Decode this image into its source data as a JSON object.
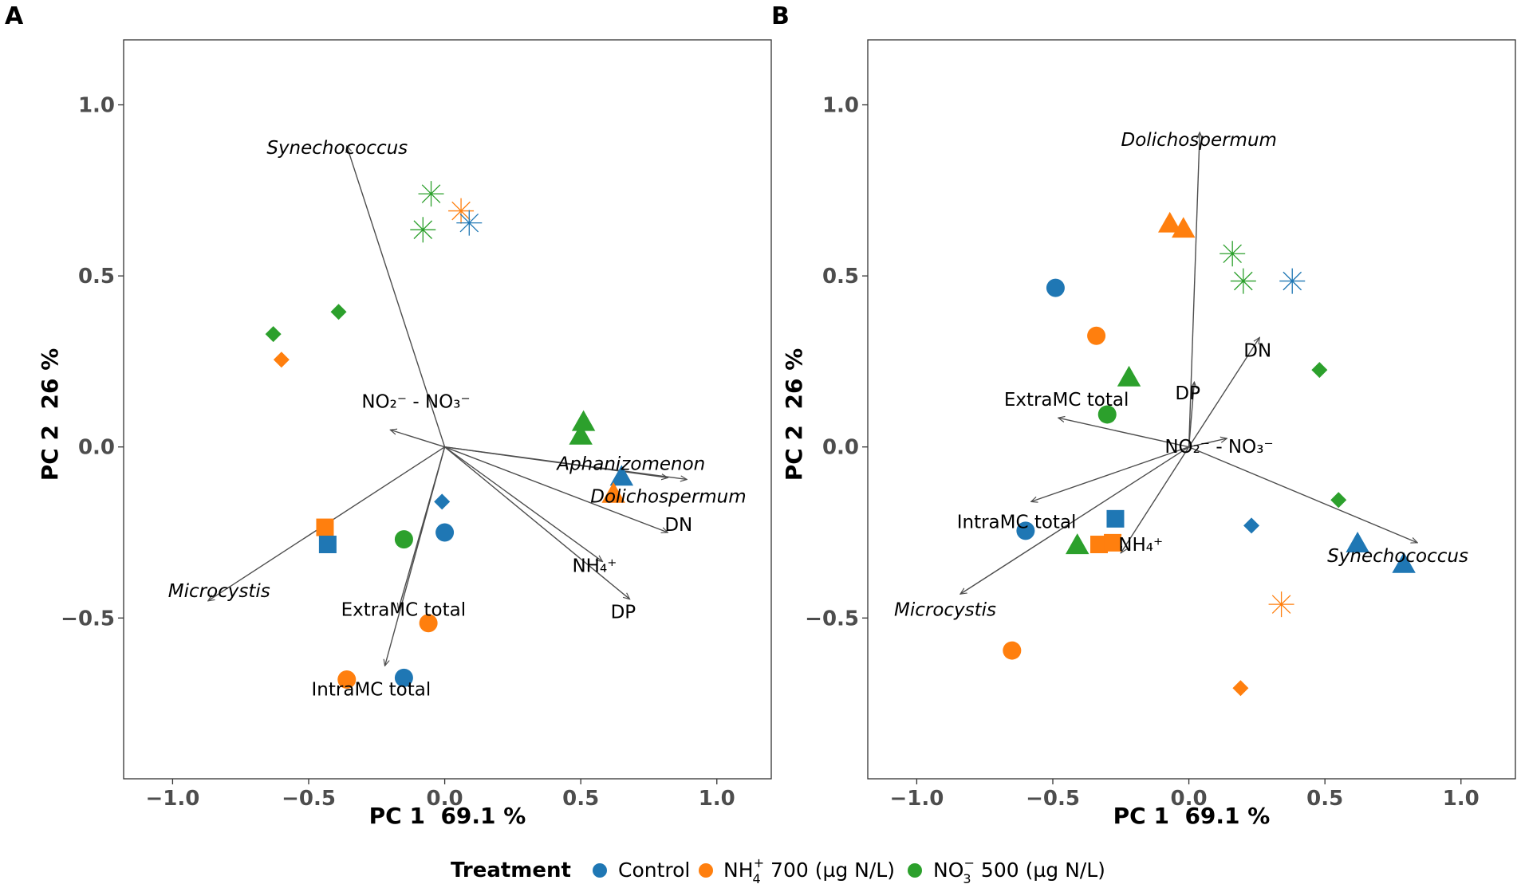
{
  "legend": {
    "title": "Treatment",
    "items": [
      {
        "key": "control",
        "label": "Control",
        "color": "#1f77b4"
      },
      {
        "key": "nh4",
        "label_main": "NH",
        "label_sub": "4",
        "label_sup": "+",
        "label_rest": " 700 (µg N/L)",
        "color": "#ff7f0e"
      },
      {
        "key": "no3",
        "label_main": "NO",
        "label_sub": "3",
        "label_sup": "−",
        "label_rest": " 500 (µg N/L)",
        "color": "#2ca02c"
      }
    ]
  },
  "chart_data": [
    {
      "type": "scatter",
      "panel": "A",
      "xlabel": "PC 1  69.1 %",
      "ylabel": "PC 2  26 %",
      "xlim": [
        -1.18,
        1.2
      ],
      "ylim": [
        -0.97,
        1.19
      ],
      "xticks": [
        -1.0,
        -0.5,
        0.0,
        0.5,
        1.0
      ],
      "xtick_labels": [
        "−1.0",
        "−0.5",
        "0.0",
        "0.5",
        "1.0"
      ],
      "yticks": [
        -0.5,
        0.0,
        0.5,
        1.0
      ],
      "ytick_labels": [
        "−0.5",
        "0.0",
        "0.5",
        "1.0"
      ],
      "grid": false,
      "points": [
        {
          "x": -0.05,
          "y": 0.74,
          "treatment": "no3",
          "shape": "asterisk"
        },
        {
          "x": -0.08,
          "y": 0.635,
          "treatment": "no3",
          "shape": "asterisk"
        },
        {
          "x": 0.06,
          "y": 0.69,
          "treatment": "nh4",
          "shape": "asterisk"
        },
        {
          "x": 0.09,
          "y": 0.655,
          "treatment": "control",
          "shape": "asterisk"
        },
        {
          "x": -0.63,
          "y": 0.33,
          "treatment": "no3",
          "shape": "diamond"
        },
        {
          "x": -0.39,
          "y": 0.395,
          "treatment": "no3",
          "shape": "diamond"
        },
        {
          "x": -0.6,
          "y": 0.255,
          "treatment": "nh4",
          "shape": "diamond"
        },
        {
          "x": -0.01,
          "y": -0.16,
          "treatment": "control",
          "shape": "diamond"
        },
        {
          "x": 0.51,
          "y": 0.07,
          "treatment": "no3",
          "shape": "triangle"
        },
        {
          "x": 0.5,
          "y": 0.03,
          "treatment": "no3",
          "shape": "triangle"
        },
        {
          "x": 0.65,
          "y": -0.09,
          "treatment": "control",
          "shape": "triangle"
        },
        {
          "x": 0.62,
          "y": -0.14,
          "treatment": "nh4",
          "shape": "triangle"
        },
        {
          "x": -0.44,
          "y": -0.235,
          "treatment": "nh4",
          "shape": "square"
        },
        {
          "x": -0.43,
          "y": -0.285,
          "treatment": "control",
          "shape": "square"
        },
        {
          "x": -0.15,
          "y": -0.27,
          "treatment": "no3",
          "shape": "circle"
        },
        {
          "x": 0.0,
          "y": -0.25,
          "treatment": "control",
          "shape": "circle"
        },
        {
          "x": -0.06,
          "y": -0.515,
          "treatment": "nh4",
          "shape": "circle"
        },
        {
          "x": -0.15,
          "y": -0.675,
          "treatment": "control",
          "shape": "circle"
        },
        {
          "x": -0.36,
          "y": -0.68,
          "treatment": "nh4",
          "shape": "circle"
        }
      ],
      "vectors": [
        {
          "name": "Synechococcus",
          "x": -0.36,
          "y": 0.88,
          "italic": true
        },
        {
          "name": "NO₂⁻ - NO₃⁻",
          "x": -0.2,
          "y": 0.05,
          "italic": false
        },
        {
          "name": "Aphanizomenon",
          "x": 0.82,
          "y": -0.09,
          "italic": true
        },
        {
          "name": "Dolichospermum",
          "x": 0.89,
          "y": -0.095,
          "italic": true
        },
        {
          "name": "DN",
          "x": 0.82,
          "y": -0.25,
          "italic": false
        },
        {
          "name": "NH₄⁺",
          "x": 0.58,
          "y": -0.335,
          "italic": false
        },
        {
          "name": "DP",
          "x": 0.68,
          "y": -0.445,
          "italic": false
        },
        {
          "name": "Microcystis",
          "x": -0.87,
          "y": -0.45,
          "italic": true
        },
        {
          "name": "ExtraMC total",
          "x": -0.17,
          "y": -0.475,
          "italic": false
        },
        {
          "name": "IntraMC total",
          "x": -0.22,
          "y": -0.64,
          "italic": false
        }
      ]
    },
    {
      "type": "scatter",
      "panel": "B",
      "xlabel": "PC 1  69.1 %",
      "ylabel": "PC 2  26 %",
      "xlim": [
        -1.18,
        1.2
      ],
      "ylim": [
        -0.97,
        1.19
      ],
      "xticks": [
        -1.0,
        -0.5,
        0.0,
        0.5,
        1.0
      ],
      "xtick_labels": [
        "−1.0",
        "−0.5",
        "0.0",
        "0.5",
        "1.0"
      ],
      "yticks": [
        -0.5,
        0.0,
        0.5,
        1.0
      ],
      "ytick_labels": [
        "−0.5",
        "0.0",
        "0.5",
        "1.0"
      ],
      "grid": false,
      "points": [
        {
          "x": -0.07,
          "y": 0.65,
          "treatment": "nh4",
          "shape": "triangle"
        },
        {
          "x": -0.02,
          "y": 0.635,
          "treatment": "nh4",
          "shape": "triangle"
        },
        {
          "x": 0.16,
          "y": 0.565,
          "treatment": "no3",
          "shape": "asterisk"
        },
        {
          "x": 0.2,
          "y": 0.485,
          "treatment": "no3",
          "shape": "asterisk"
        },
        {
          "x": 0.38,
          "y": 0.485,
          "treatment": "control",
          "shape": "asterisk"
        },
        {
          "x": 0.34,
          "y": -0.46,
          "treatment": "nh4",
          "shape": "asterisk"
        },
        {
          "x": -0.49,
          "y": 0.465,
          "treatment": "control",
          "shape": "circle"
        },
        {
          "x": -0.34,
          "y": 0.325,
          "treatment": "nh4",
          "shape": "circle"
        },
        {
          "x": -0.3,
          "y": 0.095,
          "treatment": "no3",
          "shape": "circle"
        },
        {
          "x": -0.6,
          "y": -0.245,
          "treatment": "control",
          "shape": "circle"
        },
        {
          "x": -0.65,
          "y": -0.595,
          "treatment": "nh4",
          "shape": "circle"
        },
        {
          "x": -0.22,
          "y": 0.2,
          "treatment": "no3",
          "shape": "triangle"
        },
        {
          "x": -0.41,
          "y": -0.29,
          "treatment": "no3",
          "shape": "triangle"
        },
        {
          "x": 0.62,
          "y": -0.285,
          "treatment": "control",
          "shape": "triangle"
        },
        {
          "x": 0.79,
          "y": -0.345,
          "treatment": "control",
          "shape": "triangle"
        },
        {
          "x": 0.48,
          "y": 0.225,
          "treatment": "no3",
          "shape": "diamond"
        },
        {
          "x": 0.55,
          "y": -0.155,
          "treatment": "no3",
          "shape": "diamond"
        },
        {
          "x": 0.23,
          "y": -0.23,
          "treatment": "control",
          "shape": "diamond"
        },
        {
          "x": 0.19,
          "y": -0.705,
          "treatment": "nh4",
          "shape": "diamond"
        },
        {
          "x": -0.27,
          "y": -0.21,
          "treatment": "control",
          "shape": "square"
        },
        {
          "x": -0.33,
          "y": -0.285,
          "treatment": "nh4",
          "shape": "square"
        },
        {
          "x": -0.28,
          "y": -0.28,
          "treatment": "nh4",
          "shape": "square"
        }
      ],
      "vectors": [
        {
          "name": "Dolichospermum",
          "x": 0.04,
          "y": 0.92,
          "italic": true
        },
        {
          "name": "DN",
          "x": 0.26,
          "y": 0.32,
          "italic": false
        },
        {
          "name": "DP",
          "x": 0.02,
          "y": 0.19,
          "italic": false
        },
        {
          "name": "ExtraMC total",
          "x": -0.48,
          "y": 0.085,
          "italic": false
        },
        {
          "name": "NO₂⁻ - NO₃⁻",
          "x": 0.14,
          "y": 0.025,
          "italic": false
        },
        {
          "name": "IntraMC total",
          "x": -0.58,
          "y": -0.16,
          "italic": false
        },
        {
          "name": "NH₄⁺",
          "x": -0.25,
          "y": -0.31,
          "italic": false
        },
        {
          "name": "Synechococcus",
          "x": 0.84,
          "y": -0.28,
          "italic": true
        },
        {
          "name": "Microcystis",
          "x": -0.84,
          "y": -0.43,
          "italic": true
        }
      ]
    }
  ]
}
